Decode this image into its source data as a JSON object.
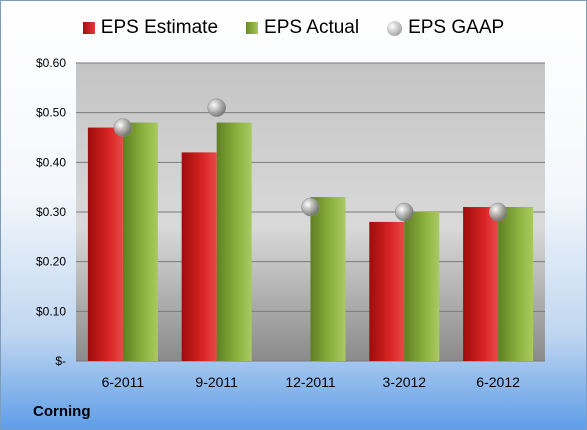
{
  "chart_data": {
    "type": "bar",
    "categories": [
      "6-2011",
      "9-2011",
      "12-2011",
      "3-2012",
      "6-2012"
    ],
    "series": [
      {
        "name": "EPS Estimate",
        "type": "bar",
        "values": [
          0.47,
          0.42,
          null,
          0.28,
          0.31
        ],
        "color": "#cc1f1f"
      },
      {
        "name": "EPS Actual",
        "type": "bar",
        "values": [
          0.48,
          0.48,
          0.33,
          0.3,
          0.31
        ],
        "color": "#8db33f"
      },
      {
        "name": "EPS GAAP",
        "type": "marker",
        "values": [
          0.47,
          0.51,
          0.31,
          0.3,
          0.3
        ],
        "color": "#b0b0b0"
      }
    ],
    "yticks": [
      {
        "value": 0.6,
        "label": "$0.60"
      },
      {
        "value": 0.5,
        "label": "$0.50"
      },
      {
        "value": 0.4,
        "label": "$0.40"
      },
      {
        "value": 0.3,
        "label": "$0.30"
      },
      {
        "value": 0.2,
        "label": "$0.20"
      },
      {
        "value": 0.1,
        "label": "$0.10"
      },
      {
        "value": 0,
        "label": "$-"
      }
    ],
    "ylim": [
      0,
      0.6
    ],
    "grid": true,
    "legend_position": "top"
  },
  "footer": {
    "company": "Corning"
  }
}
